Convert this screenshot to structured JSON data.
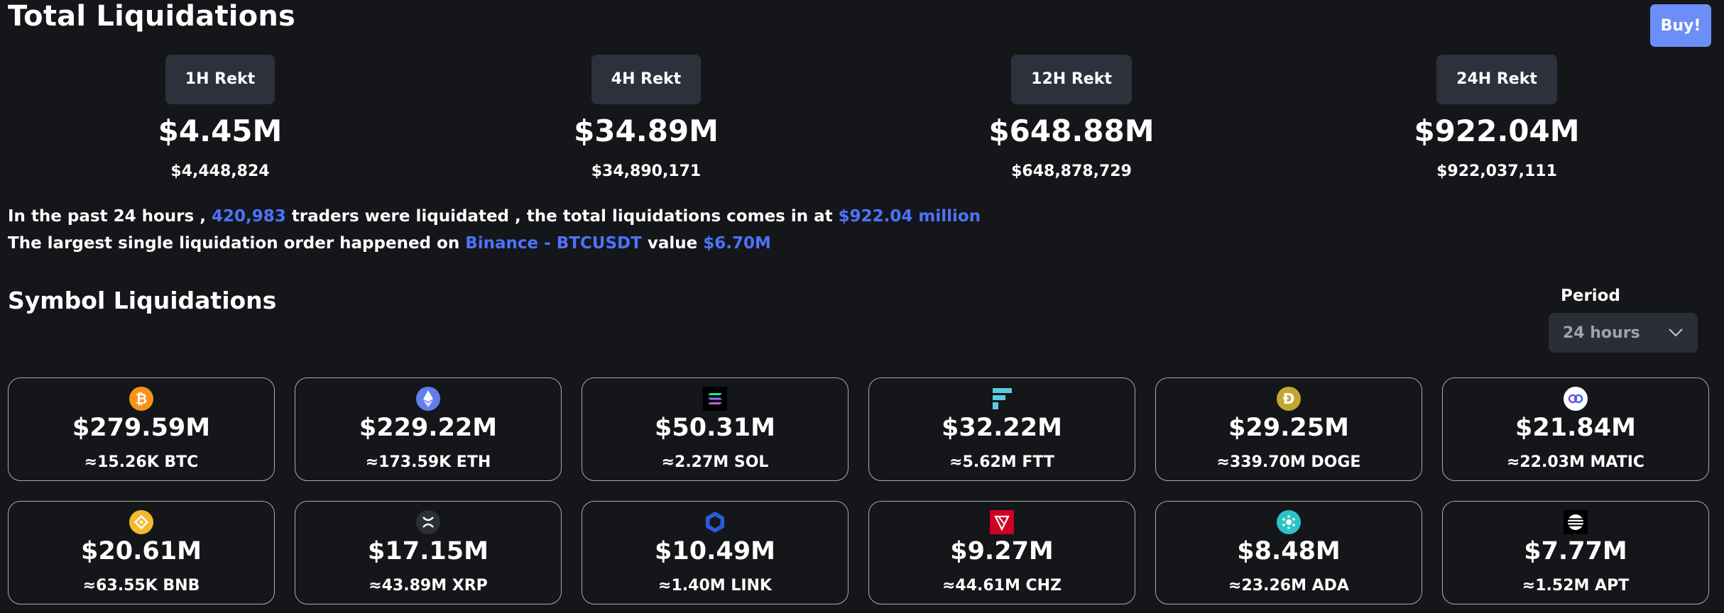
{
  "header": {
    "title": "Total Liquidations",
    "buy_label": "Buy!"
  },
  "stats": [
    {
      "label": "1H Rekt",
      "short": "$4.45M",
      "full": "$4,448,824"
    },
    {
      "label": "4H Rekt",
      "short": "$34.89M",
      "full": "$34,890,171"
    },
    {
      "label": "12H Rekt",
      "short": "$648.88M",
      "full": "$648,878,729"
    },
    {
      "label": "24H Rekt",
      "short": "$922.04M",
      "full": "$922,037,111"
    }
  ],
  "summary": {
    "line1_a": "In the past 24 hours , ",
    "traders": "420,983",
    "line1_b": " traders were liquidated , the total liquidations comes in at ",
    "total": "$922.04 million",
    "line2_a": "The largest single liquidation order happened on ",
    "order": "Binance - BTCUSDT",
    "line2_b": " value ",
    "value": "$6.70M"
  },
  "symbols": {
    "title": "Symbol Liquidations",
    "period_label": "Period",
    "period_value": "24 hours"
  },
  "cards": [
    {
      "icon": "btc-icon",
      "color": "#f7931a",
      "value": "$279.59M",
      "amount": "≈15.26K BTC"
    },
    {
      "icon": "eth-icon",
      "color": "#627eea",
      "value": "$229.22M",
      "amount": "≈173.59K ETH"
    },
    {
      "icon": "sol-icon",
      "color": "#000000",
      "value": "$50.31M",
      "amount": "≈2.27M SOL"
    },
    {
      "icon": "ftt-icon",
      "color": "#5fcade",
      "value": "$32.22M",
      "amount": "≈5.62M FTT"
    },
    {
      "icon": "doge-icon",
      "color": "#c2a633",
      "value": "$29.25M",
      "amount": "≈339.70M DOGE"
    },
    {
      "icon": "matic-icon",
      "color": "#ffffff",
      "value": "$21.84M",
      "amount": "≈22.03M MATIC"
    },
    {
      "icon": "bnb-icon",
      "color": "#f3ba2f",
      "value": "$20.61M",
      "amount": "≈63.55K BNB"
    },
    {
      "icon": "xrp-icon",
      "color": "#23292f",
      "value": "$17.15M",
      "amount": "≈43.89M XRP"
    },
    {
      "icon": "link-icon",
      "color": "#2a5ada",
      "value": "$10.49M",
      "amount": "≈1.40M LINK"
    },
    {
      "icon": "chz-icon",
      "color": "#cd0124",
      "value": "$9.27M",
      "amount": "≈44.61M CHZ"
    },
    {
      "icon": "ada-icon",
      "color": "#2bc3c8",
      "value": "$8.48M",
      "amount": "≈23.26M ADA"
    },
    {
      "icon": "apt-icon",
      "color": "#000000",
      "value": "$7.77M",
      "amount": "≈1.52M APT"
    }
  ]
}
